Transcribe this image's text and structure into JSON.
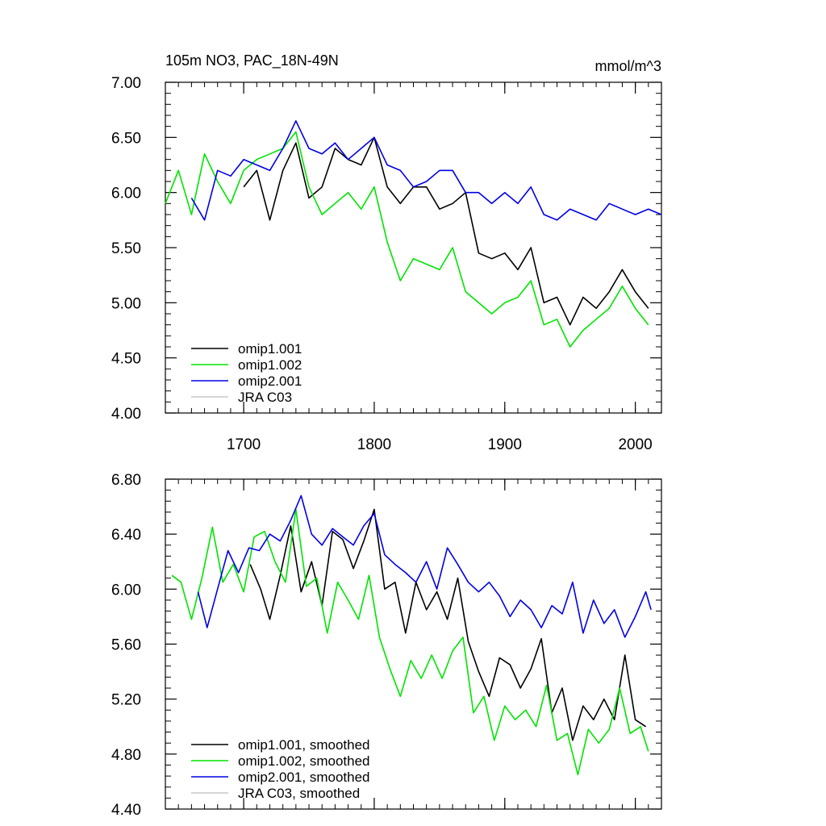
{
  "figure": {
    "title": "105m NO3, PAC_18N-49N",
    "units": "mmol/m^3"
  },
  "chart_data": [
    {
      "type": "line",
      "title": "105m NO3, PAC_18N-49N",
      "units": "mmol/m^3",
      "xlabel": "",
      "ylabel": "",
      "xlim": [
        1640,
        2020
      ],
      "ylim": [
        4.0,
        7.0
      ],
      "x_ticks": [
        1700,
        1800,
        1900,
        2000
      ],
      "x_tick_labels": [
        "1700",
        "1800",
        "1900",
        "2000"
      ],
      "y_ticks": [
        4.0,
        4.5,
        5.0,
        5.5,
        6.0,
        6.5,
        7.0
      ],
      "y_tick_labels": [
        "4.00",
        "4.50",
        "5.00",
        "5.50",
        "6.00",
        "6.50",
        "7.00"
      ],
      "legend_position": "bottom-left",
      "series": [
        {
          "name": "omip1.001",
          "color": "#000000",
          "x": [
            1700,
            1710,
            1720,
            1730,
            1740,
            1750,
            1760,
            1770,
            1780,
            1790,
            1800,
            1810,
            1820,
            1830,
            1840,
            1850,
            1860,
            1870,
            1880,
            1890,
            1900,
            1910,
            1920,
            1930,
            1940,
            1950,
            1960,
            1970,
            1980,
            1990,
            2000,
            2010
          ],
          "values": [
            6.05,
            6.2,
            5.75,
            6.2,
            6.45,
            5.95,
            6.05,
            6.4,
            6.3,
            6.25,
            6.5,
            6.05,
            5.9,
            6.05,
            6.05,
            5.85,
            5.9,
            6.0,
            5.45,
            5.4,
            5.45,
            5.3,
            5.5,
            5.0,
            5.05,
            4.8,
            5.05,
            4.95,
            5.1,
            5.3,
            5.1,
            4.95
          ]
        },
        {
          "name": "omip1.002",
          "color": "#00e400",
          "x": [
            1640,
            1650,
            1660,
            1670,
            1680,
            1690,
            1700,
            1710,
            1720,
            1730,
            1740,
            1750,
            1760,
            1770,
            1780,
            1790,
            1800,
            1810,
            1820,
            1830,
            1840,
            1850,
            1860,
            1870,
            1880,
            1890,
            1900,
            1910,
            1920,
            1930,
            1940,
            1950,
            1960,
            1970,
            1980,
            1990,
            2000,
            2010
          ],
          "values": [
            5.9,
            6.2,
            5.8,
            6.35,
            6.1,
            5.9,
            6.2,
            6.3,
            6.35,
            6.4,
            6.55,
            6.05,
            5.8,
            5.9,
            6.0,
            5.85,
            6.05,
            5.55,
            5.2,
            5.4,
            5.35,
            5.3,
            5.5,
            5.1,
            5.0,
            4.9,
            5.0,
            5.05,
            5.2,
            4.8,
            4.85,
            4.6,
            4.75,
            4.85,
            4.95,
            5.15,
            4.95,
            4.8
          ]
        },
        {
          "name": "omip2.001",
          "color": "#0000e6",
          "x": [
            1660,
            1670,
            1680,
            1690,
            1700,
            1710,
            1720,
            1730,
            1740,
            1750,
            1760,
            1770,
            1780,
            1790,
            1800,
            1810,
            1820,
            1830,
            1840,
            1850,
            1860,
            1870,
            1880,
            1890,
            1900,
            1910,
            1920,
            1930,
            1940,
            1950,
            1960,
            1970,
            1980,
            1990,
            2000,
            2010,
            2020
          ],
          "values": [
            5.95,
            5.75,
            6.2,
            6.15,
            6.3,
            6.25,
            6.2,
            6.4,
            6.65,
            6.4,
            6.35,
            6.45,
            6.3,
            6.4,
            6.5,
            6.25,
            6.2,
            6.05,
            6.1,
            6.2,
            6.2,
            6.0,
            6.0,
            5.9,
            6.0,
            5.9,
            6.05,
            5.8,
            5.75,
            5.85,
            5.8,
            5.75,
            5.9,
            5.85,
            5.8,
            5.85,
            5.8
          ]
        },
        {
          "name": "JRA C03",
          "color": "#c8c8c8",
          "x": [],
          "values": []
        }
      ]
    },
    {
      "type": "line",
      "title": "",
      "xlabel": "",
      "ylabel": "",
      "xlim": [
        1640,
        2020
      ],
      "ylim": [
        4.4,
        6.8
      ],
      "x_ticks": [
        1700,
        1800,
        1900,
        2000
      ],
      "x_tick_labels": [
        "",
        "",
        "",
        ""
      ],
      "y_ticks": [
        4.4,
        4.8,
        5.2,
        5.6,
        6.0,
        6.4,
        6.8
      ],
      "y_tick_labels": [
        "4.40",
        "4.80",
        "5.20",
        "5.60",
        "6.00",
        "6.40",
        "6.80"
      ],
      "legend_position": "bottom-left",
      "series": [
        {
          "name": "omip1.001, smoothed",
          "color": "#000000",
          "x": [
            1705,
            1713,
            1720,
            1728,
            1736,
            1744,
            1752,
            1760,
            1768,
            1776,
            1784,
            1792,
            1800,
            1808,
            1816,
            1824,
            1832,
            1840,
            1848,
            1856,
            1864,
            1872,
            1880,
            1888,
            1896,
            1904,
            1912,
            1920,
            1928,
            1936,
            1944,
            1952,
            1960,
            1968,
            1976,
            1984,
            1992,
            2000,
            2008
          ],
          "values": [
            6.18,
            6.0,
            5.78,
            6.1,
            6.46,
            5.98,
            6.2,
            5.88,
            6.42,
            6.36,
            6.15,
            6.35,
            6.58,
            6.0,
            6.05,
            5.68,
            6.05,
            5.85,
            5.98,
            5.78,
            6.08,
            5.62,
            5.4,
            5.22,
            5.5,
            5.45,
            5.28,
            5.42,
            5.64,
            5.1,
            5.28,
            4.9,
            5.15,
            5.05,
            5.2,
            5.05,
            5.52,
            5.05,
            5.0
          ]
        },
        {
          "name": "omip1.002, smoothed",
          "color": "#00e400",
          "x": [
            1645,
            1652,
            1660,
            1668,
            1676,
            1684,
            1692,
            1700,
            1708,
            1716,
            1724,
            1732,
            1740,
            1748,
            1756,
            1764,
            1772,
            1780,
            1788,
            1796,
            1804,
            1812,
            1820,
            1828,
            1836,
            1844,
            1852,
            1860,
            1868,
            1876,
            1884,
            1892,
            1900,
            1908,
            1916,
            1924,
            1932,
            1940,
            1948,
            1956,
            1964,
            1972,
            1980,
            1988,
            1996,
            2004,
            2010
          ],
          "values": [
            6.1,
            6.05,
            5.78,
            6.08,
            6.45,
            6.05,
            6.18,
            5.98,
            6.38,
            6.42,
            6.2,
            6.05,
            6.58,
            6.02,
            6.08,
            5.68,
            6.05,
            5.92,
            5.78,
            6.1,
            5.65,
            5.42,
            5.22,
            5.48,
            5.35,
            5.52,
            5.35,
            5.55,
            5.65,
            5.1,
            5.22,
            4.9,
            5.15,
            5.05,
            5.12,
            5.0,
            5.3,
            4.9,
            4.95,
            4.65,
            4.98,
            4.88,
            4.98,
            5.28,
            4.95,
            5.0,
            4.82
          ]
        },
        {
          "name": "omip2.001, smoothed",
          "color": "#0000e6",
          "x": [
            1665,
            1672,
            1680,
            1688,
            1696,
            1704,
            1712,
            1720,
            1728,
            1736,
            1744,
            1752,
            1760,
            1768,
            1776,
            1784,
            1792,
            1800,
            1808,
            1816,
            1824,
            1832,
            1840,
            1848,
            1856,
            1864,
            1872,
            1880,
            1888,
            1896,
            1904,
            1912,
            1920,
            1928,
            1936,
            1944,
            1952,
            1960,
            1968,
            1976,
            1984,
            1992,
            2000,
            2008,
            2012
          ],
          "values": [
            5.98,
            5.72,
            6.0,
            6.28,
            6.12,
            6.3,
            6.28,
            6.4,
            6.35,
            6.5,
            6.68,
            6.4,
            6.32,
            6.44,
            6.38,
            6.32,
            6.46,
            6.55,
            6.25,
            6.18,
            6.12,
            6.05,
            6.2,
            6.0,
            6.3,
            6.18,
            6.05,
            5.98,
            6.05,
            5.95,
            5.8,
            5.92,
            5.85,
            5.72,
            5.88,
            5.82,
            6.05,
            5.68,
            5.92,
            5.75,
            5.85,
            5.65,
            5.8,
            5.98,
            5.85
          ]
        },
        {
          "name": "JRA C03, smoothed",
          "color": "#c8c8c8",
          "x": [],
          "values": []
        }
      ]
    }
  ]
}
